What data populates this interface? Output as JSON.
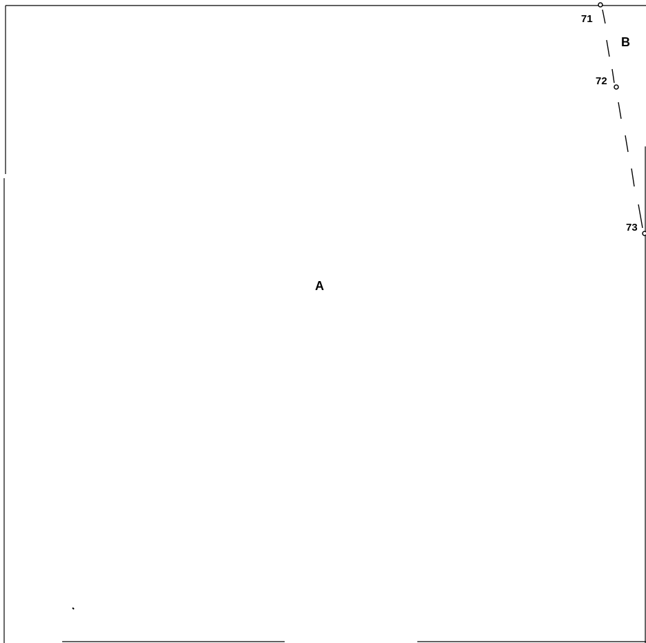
{
  "diagram": {
    "regions": [
      {
        "id": "A",
        "label": "A"
      },
      {
        "id": "B",
        "label": "B"
      }
    ],
    "points": [
      {
        "id": "71",
        "label": "71"
      },
      {
        "id": "72",
        "label": "72"
      },
      {
        "id": "73",
        "label": "73"
      }
    ],
    "boundary_line_style": "dashed",
    "colors": {
      "ink": "#000000",
      "background": "#ffffff"
    }
  }
}
